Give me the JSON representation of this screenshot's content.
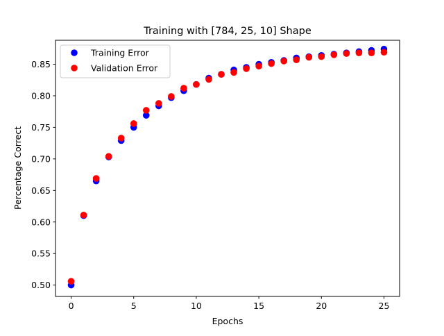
{
  "chart_data": {
    "type": "scatter",
    "title": "Training with [784, 25, 10] Shape",
    "xlabel": "Epochs",
    "ylabel": "Percentage Correct",
    "xlim": [
      -1.25,
      26.25
    ],
    "ylim": [
      0.482,
      0.888
    ],
    "xticks": [
      0,
      5,
      10,
      15,
      20,
      25
    ],
    "yticks": [
      0.5,
      0.55,
      0.6,
      0.65,
      0.7,
      0.75,
      0.8,
      0.85
    ],
    "ytick_labels": [
      "0.50",
      "0.55",
      "0.60",
      "0.65",
      "0.70",
      "0.75",
      "0.80",
      "0.85"
    ],
    "grid": false,
    "legend_position": "upper-left",
    "x": [
      0,
      1,
      2,
      3,
      4,
      5,
      6,
      7,
      8,
      9,
      10,
      11,
      12,
      13,
      14,
      15,
      16,
      17,
      18,
      19,
      20,
      21,
      22,
      23,
      24,
      25
    ],
    "series": [
      {
        "name": "Training Error",
        "color": "#0000ff",
        "values": [
          0.5,
          0.61,
          0.665,
          0.703,
          0.729,
          0.75,
          0.769,
          0.784,
          0.797,
          0.808,
          0.818,
          0.828,
          0.834,
          0.841,
          0.845,
          0.85,
          0.853,
          0.856,
          0.86,
          0.862,
          0.864,
          0.866,
          0.868,
          0.87,
          0.872,
          0.874
        ]
      },
      {
        "name": "Validation Error",
        "color": "#ff0000",
        "values": [
          0.506,
          0.611,
          0.669,
          0.704,
          0.733,
          0.756,
          0.777,
          0.788,
          0.799,
          0.812,
          0.818,
          0.826,
          0.834,
          0.837,
          0.843,
          0.847,
          0.851,
          0.855,
          0.857,
          0.861,
          0.862,
          0.865,
          0.867,
          0.868,
          0.868,
          0.869
        ]
      }
    ]
  }
}
